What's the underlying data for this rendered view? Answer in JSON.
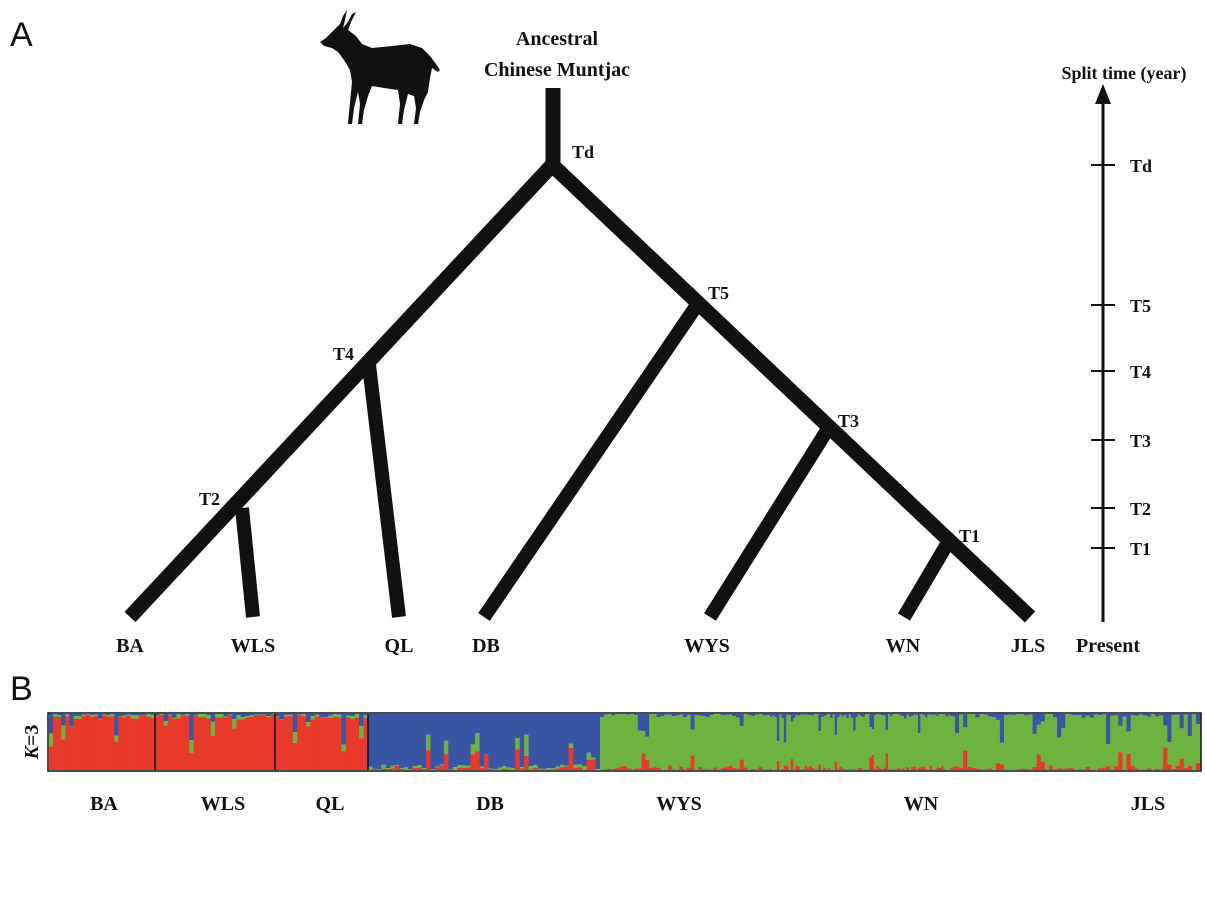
{
  "panel_a": {
    "letter": "A",
    "root_label_line1": "Ancestral",
    "root_label_line2": "Chinese Muntjac",
    "node_labels": {
      "td": "Td",
      "t5": "T5",
      "t4": "T4",
      "t3": "T3",
      "t2": "T2",
      "t1": "T1"
    },
    "leaves": [
      "BA",
      "WLS",
      "QL",
      "DB",
      "WYS",
      "WN",
      "JLS"
    ],
    "axis": {
      "title": "Split time (year)",
      "ticks": [
        "Td",
        "T5",
        "T4",
        "T3",
        "T2",
        "T1"
      ],
      "bottom_label": "Present"
    }
  },
  "panel_b": {
    "letter": "B",
    "k_italic": "K",
    "k_rest": "=3",
    "populations": [
      "BA",
      "WLS",
      "QL",
      "DB",
      "WYS",
      "WN",
      "JLS"
    ],
    "colors": {
      "red": "#e8392b",
      "green": "#6db33f",
      "blue": "#3a55a4"
    },
    "structure_groups": [
      {
        "name": "BA",
        "count": 26,
        "major": "red"
      },
      {
        "name": "WLS",
        "count": 28,
        "major": "red"
      },
      {
        "name": "QL",
        "count": 21,
        "major": "red"
      },
      {
        "name": "DB",
        "count": 52,
        "major": "blue"
      },
      {
        "name": "WYS",
        "count": 45,
        "major": "green"
      },
      {
        "name": "WN",
        "count": 80,
        "major": "green"
      },
      {
        "name": "JLS",
        "count": 60,
        "major": "green"
      }
    ]
  }
}
